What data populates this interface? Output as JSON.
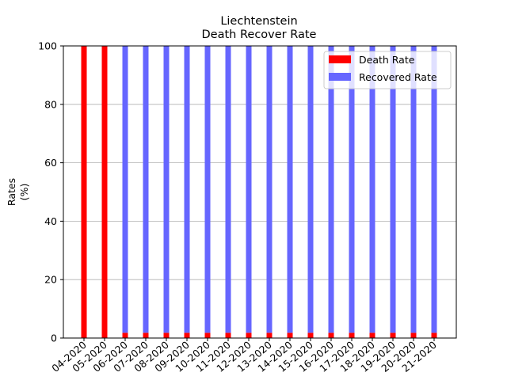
{
  "chart_data": {
    "type": "bar",
    "stacked": true,
    "title": "Liechtenstein",
    "subtitle": "Death Recover Rate",
    "xlabel": "",
    "ylabel": "Rates",
    "ylabel_unit": "(%)",
    "ylim": [
      0,
      100
    ],
    "yticks": [
      "0",
      "20",
      "40",
      "60",
      "80",
      "100"
    ],
    "grid": "horizontal",
    "legend_position": "top-right",
    "categories": [
      "04-2020",
      "05-2020",
      "06-2020",
      "07-2020",
      "08-2020",
      "09-2020",
      "10-2020",
      "11-2020",
      "12-2020",
      "13-2020",
      "14-2020",
      "15-2020",
      "16-2020",
      "17-2020",
      "18-2020",
      "19-2020",
      "20-2020",
      "21-2020"
    ],
    "series": [
      {
        "name": "Death Rate",
        "color": "#ff0000",
        "values": [
          100,
          100,
          1.8,
          1.8,
          1.8,
          1.8,
          1.8,
          1.8,
          1.8,
          1.8,
          1.8,
          1.8,
          1.8,
          1.8,
          1.8,
          1.8,
          1.8,
          1.8
        ]
      },
      {
        "name": "Recovered Rate",
        "color": "#6666ff",
        "values": [
          0,
          0,
          98.2,
          98.2,
          98.2,
          98.2,
          98.2,
          98.2,
          98.2,
          98.2,
          98.2,
          98.2,
          98.2,
          98.2,
          98.2,
          98.2,
          98.2,
          98.2
        ]
      }
    ]
  }
}
